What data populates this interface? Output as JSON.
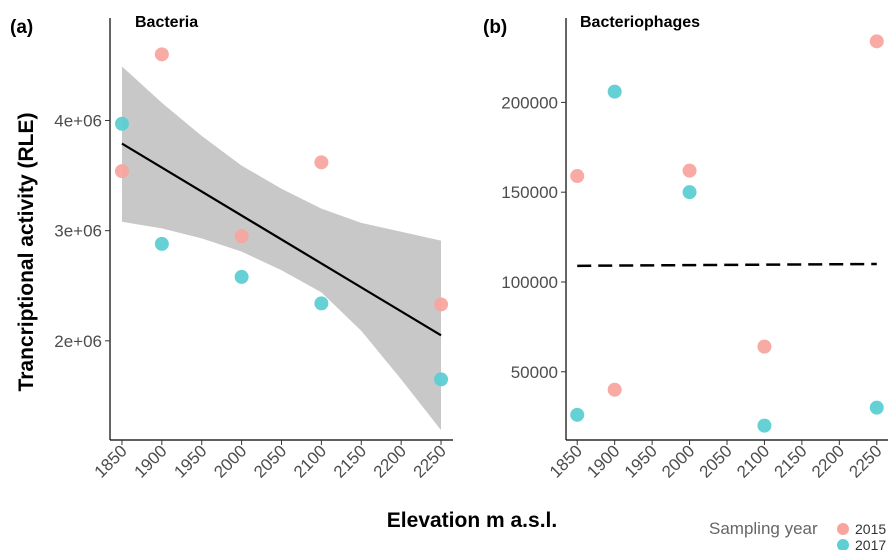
{
  "figure": {
    "xlabel": "Elevation m a.s.l.",
    "ylabel": "Trancriptional activity (RLE)",
    "legend": {
      "title": "Sampling year",
      "entries": [
        {
          "label": "2015",
          "color": "#f8a5a0"
        },
        {
          "label": "2017",
          "color": "#5ecfd3"
        }
      ],
      "position": "bottom-right"
    }
  },
  "chart_data": [
    {
      "type": "scatter",
      "panel_label": "(a)",
      "title": "Bacteria",
      "x_ticks": [
        1850,
        1900,
        1950,
        2000,
        2050,
        2100,
        2150,
        2200,
        2250
      ],
      "x_tick_labels": [
        "1850",
        "1900",
        "1950",
        "2000",
        "2050",
        "2100",
        "2150",
        "2200",
        "2250"
      ],
      "xlim": [
        1835,
        2265
      ],
      "y_ticks": [
        2000000,
        3000000,
        4000000
      ],
      "y_tick_labels": [
        "2e+06",
        "3e+06",
        "4e+06"
      ],
      "ylim": [
        1100000,
        4930000
      ],
      "grid": false,
      "series": [
        {
          "name": "2015",
          "color": "#f8a5a0",
          "points": [
            {
              "x": 1850,
              "y": 3540000
            },
            {
              "x": 1900,
              "y": 4600000
            },
            {
              "x": 2000,
              "y": 2950000
            },
            {
              "x": 2100,
              "y": 3620000
            },
            {
              "x": 2250,
              "y": 2330000
            }
          ]
        },
        {
          "name": "2017",
          "color": "#5ecfd3",
          "points": [
            {
              "x": 1850,
              "y": 3970000
            },
            {
              "x": 1900,
              "y": 2880000
            },
            {
              "x": 2000,
              "y": 2580000
            },
            {
              "x": 2100,
              "y": 2340000
            },
            {
              "x": 2250,
              "y": 1650000
            }
          ]
        }
      ],
      "fit_line": {
        "style": "solid",
        "color": "#000000",
        "x": [
          1850,
          2250
        ],
        "y": [
          3790000,
          2050000
        ]
      },
      "confidence_band": {
        "color": "#c8c8c8",
        "x": [
          1850,
          1900,
          1950,
          2000,
          2050,
          2100,
          2150,
          2200,
          2250
        ],
        "upper": [
          4490000,
          4160000,
          3860000,
          3590000,
          3380000,
          3200000,
          3070000,
          2990000,
          2910000
        ],
        "lower": [
          3080000,
          3020000,
          2930000,
          2810000,
          2640000,
          2440000,
          2090000,
          1650000,
          1190000
        ]
      }
    },
    {
      "type": "scatter",
      "panel_label": "(b)",
      "title": "Bacteriophages",
      "x_ticks": [
        1850,
        1900,
        1950,
        2000,
        2050,
        2100,
        2150,
        2200,
        2250
      ],
      "x_tick_labels": [
        "1850",
        "1900",
        "1950",
        "2000",
        "2050",
        "2100",
        "2150",
        "2200",
        "2250"
      ],
      "xlim": [
        1835,
        2265
      ],
      "y_ticks": [
        50000,
        100000,
        150000,
        200000
      ],
      "y_tick_labels": [
        "50000",
        "100000",
        "150000",
        "200000"
      ],
      "ylim": [
        12000,
        247000
      ],
      "grid": false,
      "series": [
        {
          "name": "2015",
          "color": "#f8a5a0",
          "points": [
            {
              "x": 1850,
              "y": 159000
            },
            {
              "x": 1900,
              "y": 40000
            },
            {
              "x": 2000,
              "y": 162000
            },
            {
              "x": 2100,
              "y": 64000
            },
            {
              "x": 2250,
              "y": 234000
            }
          ]
        },
        {
          "name": "2017",
          "color": "#5ecfd3",
          "points": [
            {
              "x": 1850,
              "y": 26000
            },
            {
              "x": 1900,
              "y": 206000
            },
            {
              "x": 2000,
              "y": 150000
            },
            {
              "x": 2100,
              "y": 20000
            },
            {
              "x": 2250,
              "y": 30000
            }
          ]
        }
      ],
      "fit_line": {
        "style": "dashed",
        "color": "#000000",
        "x": [
          1850,
          2250
        ],
        "y": [
          109000,
          110000
        ]
      }
    }
  ]
}
